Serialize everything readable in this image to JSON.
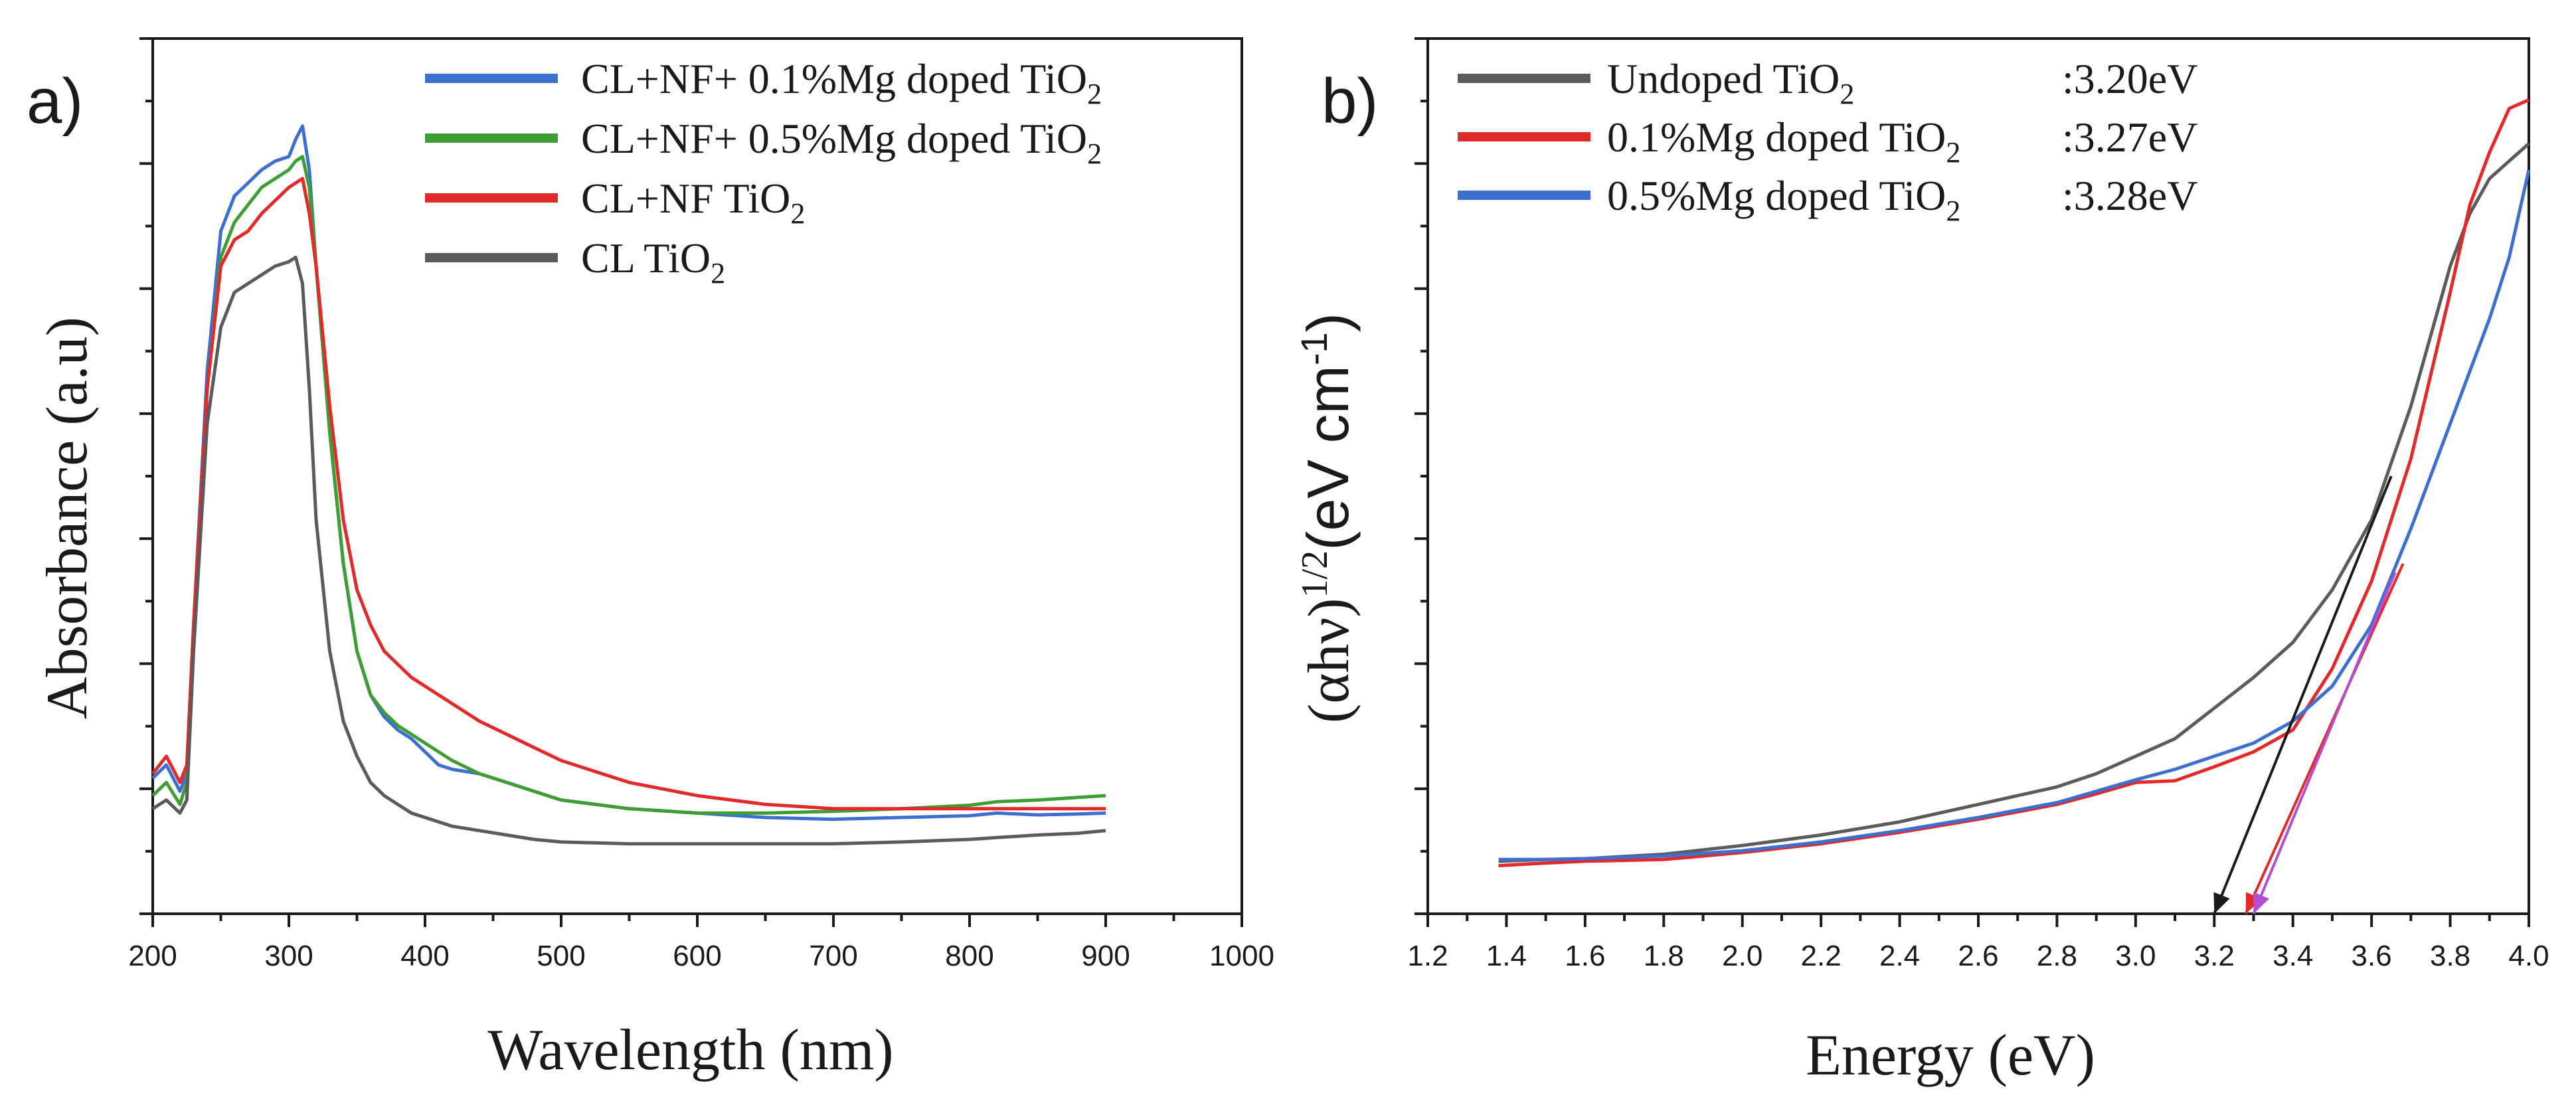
{
  "chart_data": [
    {
      "panel": "a)",
      "type": "line",
      "title": "",
      "xlabel": "Wavelength (nm)",
      "ylabel": "Absorbance (a.u)",
      "xlim": [
        200,
        1000
      ],
      "ylim": [
        0,
        1
      ],
      "x_ticks": [
        200,
        300,
        400,
        500,
        600,
        700,
        800,
        900,
        1000
      ],
      "y_tick_labels_shown": false,
      "legend_position": "top-right",
      "series": [
        {
          "name": "CL+NF+ 0.1%Mg doped TiO",
          "sub": "2",
          "color": "#3d6fd1",
          "x": [
            200,
            210,
            220,
            225,
            230,
            240,
            250,
            260,
            270,
            280,
            290,
            300,
            305,
            310,
            315,
            320,
            330,
            340,
            350,
            360,
            370,
            380,
            390,
            400,
            410,
            420,
            440,
            460,
            480,
            500,
            550,
            600,
            650,
            700,
            750,
            800,
            820,
            850,
            880,
            900
          ],
          "y": [
            0.155,
            0.17,
            0.14,
            0.16,
            0.33,
            0.62,
            0.78,
            0.82,
            0.835,
            0.85,
            0.86,
            0.865,
            0.885,
            0.9,
            0.85,
            0.74,
            0.55,
            0.4,
            0.3,
            0.25,
            0.225,
            0.21,
            0.2,
            0.185,
            0.17,
            0.165,
            0.16,
            0.15,
            0.14,
            0.13,
            0.12,
            0.115,
            0.11,
            0.108,
            0.11,
            0.112,
            0.115,
            0.113,
            0.114,
            0.115
          ]
        },
        {
          "name": "CL+NF+ 0.5%Mg doped TiO",
          "sub": "2",
          "color": "#3e9e34",
          "x": [
            200,
            210,
            220,
            225,
            230,
            240,
            250,
            260,
            270,
            280,
            290,
            300,
            305,
            310,
            315,
            320,
            330,
            340,
            350,
            360,
            370,
            380,
            390,
            400,
            410,
            420,
            440,
            460,
            480,
            500,
            550,
            600,
            650,
            700,
            750,
            800,
            820,
            850,
            880,
            900
          ],
          "y": [
            0.135,
            0.15,
            0.125,
            0.15,
            0.31,
            0.6,
            0.75,
            0.79,
            0.81,
            0.83,
            0.84,
            0.85,
            0.86,
            0.865,
            0.83,
            0.74,
            0.55,
            0.4,
            0.3,
            0.25,
            0.23,
            0.215,
            0.205,
            0.195,
            0.185,
            0.175,
            0.16,
            0.15,
            0.14,
            0.13,
            0.12,
            0.115,
            0.115,
            0.117,
            0.12,
            0.124,
            0.128,
            0.13,
            0.133,
            0.135
          ]
        },
        {
          "name": "CL+NF TiO",
          "sub": "2",
          "color": "#e32a2a",
          "x": [
            200,
            210,
            220,
            225,
            230,
            240,
            250,
            260,
            270,
            280,
            290,
            300,
            305,
            310,
            315,
            320,
            330,
            340,
            350,
            360,
            370,
            380,
            390,
            400,
            410,
            420,
            440,
            460,
            480,
            500,
            550,
            600,
            650,
            700,
            750,
            800,
            820,
            850,
            880,
            900
          ],
          "y": [
            0.16,
            0.18,
            0.15,
            0.17,
            0.33,
            0.6,
            0.74,
            0.77,
            0.78,
            0.8,
            0.815,
            0.83,
            0.835,
            0.84,
            0.8,
            0.74,
            0.58,
            0.45,
            0.37,
            0.33,
            0.3,
            0.285,
            0.27,
            0.26,
            0.25,
            0.24,
            0.22,
            0.205,
            0.19,
            0.175,
            0.15,
            0.135,
            0.125,
            0.12,
            0.12,
            0.12,
            0.12,
            0.12,
            0.12,
            0.12
          ]
        },
        {
          "name": "CL TiO",
          "sub": "2",
          "color": "#5b5b5b",
          "x": [
            200,
            210,
            220,
            225,
            230,
            240,
            250,
            260,
            270,
            280,
            290,
            300,
            305,
            310,
            315,
            320,
            330,
            340,
            350,
            360,
            370,
            380,
            390,
            400,
            410,
            420,
            440,
            460,
            480,
            500,
            550,
            600,
            650,
            700,
            750,
            800,
            820,
            850,
            880,
            900
          ],
          "y": [
            0.12,
            0.13,
            0.115,
            0.13,
            0.3,
            0.56,
            0.67,
            0.71,
            0.72,
            0.73,
            0.74,
            0.745,
            0.75,
            0.72,
            0.6,
            0.45,
            0.3,
            0.22,
            0.18,
            0.15,
            0.135,
            0.125,
            0.115,
            0.11,
            0.105,
            0.1,
            0.095,
            0.09,
            0.085,
            0.082,
            0.08,
            0.08,
            0.08,
            0.08,
            0.082,
            0.085,
            0.087,
            0.09,
            0.092,
            0.095
          ]
        }
      ]
    },
    {
      "panel": "b)",
      "type": "line",
      "title": "",
      "xlabel": "Energy (eV)",
      "ylabel_main": "(αhν)",
      "ylabel_sup": "1/2",
      "ylabel_unit": "(eV cm",
      "ylabel_unit_sup": "-1",
      "ylabel_close": ")",
      "xlim": [
        1.2,
        4.0
      ],
      "ylim": [
        0,
        1
      ],
      "x_ticks": [
        "1.2",
        "1.4",
        "1.6",
        "1.8",
        "2.0",
        "2.2",
        "2.4",
        "2.6",
        "2.8",
        "3.0",
        "3.2",
        "3.4",
        "3.6",
        "3.8",
        "4.0"
      ],
      "y_tick_labels_shown": false,
      "legend_position": "top-left",
      "series": [
        {
          "name": "Undoped TiO",
          "sub": "2",
          "value": ":3.20eV",
          "color": "#5b5b5b",
          "x": [
            1.38,
            1.5,
            1.6,
            1.8,
            2.0,
            2.2,
            2.4,
            2.6,
            2.8,
            2.9,
            3.0,
            3.1,
            3.2,
            3.3,
            3.4,
            3.5,
            3.6,
            3.7,
            3.8,
            3.85,
            3.9,
            3.95,
            4.0
          ],
          "y": [
            0.06,
            0.062,
            0.063,
            0.068,
            0.078,
            0.09,
            0.105,
            0.125,
            0.145,
            0.16,
            0.18,
            0.2,
            0.235,
            0.27,
            0.31,
            0.37,
            0.45,
            0.58,
            0.74,
            0.8,
            0.84,
            0.86,
            0.88
          ]
        },
        {
          "name": "0.1%Mg doped TiO",
          "sub": "2",
          "value": ":3.27eV",
          "color": "#e32a2a",
          "x": [
            1.38,
            1.5,
            1.6,
            1.8,
            2.0,
            2.2,
            2.4,
            2.6,
            2.8,
            2.9,
            3.0,
            3.1,
            3.2,
            3.3,
            3.4,
            3.5,
            3.6,
            3.7,
            3.8,
            3.85,
            3.9,
            3.95,
            4.0
          ],
          "y": [
            0.055,
            0.058,
            0.06,
            0.062,
            0.07,
            0.08,
            0.093,
            0.108,
            0.125,
            0.137,
            0.15,
            0.152,
            0.168,
            0.185,
            0.21,
            0.28,
            0.38,
            0.52,
            0.71,
            0.81,
            0.87,
            0.92,
            0.93
          ]
        },
        {
          "name": "0.5%Mg doped TiO",
          "sub": "2",
          "value": ":3.28eV",
          "color": "#3d6fd1",
          "x": [
            1.38,
            1.5,
            1.6,
            1.8,
            2.0,
            2.2,
            2.4,
            2.6,
            2.8,
            2.9,
            3.0,
            3.1,
            3.2,
            3.3,
            3.4,
            3.5,
            3.6,
            3.7,
            3.8,
            3.85,
            3.9,
            3.95,
            4.0
          ],
          "y": [
            0.062,
            0.062,
            0.063,
            0.066,
            0.072,
            0.082,
            0.095,
            0.11,
            0.127,
            0.14,
            0.153,
            0.165,
            0.18,
            0.195,
            0.22,
            0.26,
            0.33,
            0.44,
            0.56,
            0.62,
            0.68,
            0.75,
            0.85
          ]
        }
      ],
      "tangent_lines": [
        {
          "series": "Undoped TiO2",
          "color": "#1a1a1a",
          "from": [
            3.65,
            0.5
          ],
          "to": [
            3.2,
            0.0
          ]
        },
        {
          "series": "0.1%Mg doped TiO2",
          "color": "#e32a2a",
          "from": [
            3.68,
            0.4
          ],
          "to": [
            3.28,
            0.0
          ]
        },
        {
          "series": "0.5%Mg doped TiO2",
          "color": "#b24fd1",
          "from": [
            3.66,
            0.39
          ],
          "to": [
            3.3,
            0.0
          ]
        }
      ]
    }
  ]
}
